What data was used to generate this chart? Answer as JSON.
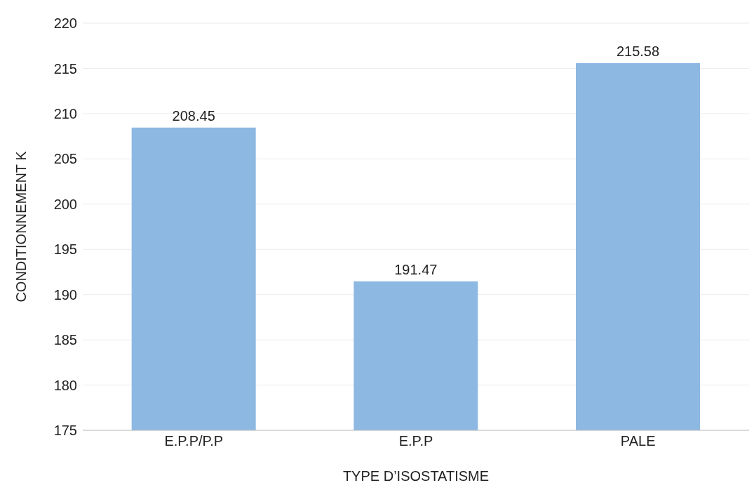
{
  "chart_data": {
    "type": "bar",
    "xlabel": "TYPE D’ISOSTATISME",
    "ylabel": "CONDITIONNEMENT K",
    "categories": [
      "E.P.P/P.P",
      "E.P.P",
      "PALE"
    ],
    "values": [
      208.45,
      191.47,
      215.58
    ],
    "color": "#8db8e2",
    "ylim": [
      175,
      220
    ],
    "yticks": [
      175,
      180,
      185,
      190,
      195,
      200,
      205,
      210,
      215,
      220
    ],
    "grid": "y",
    "data_labels": true
  }
}
